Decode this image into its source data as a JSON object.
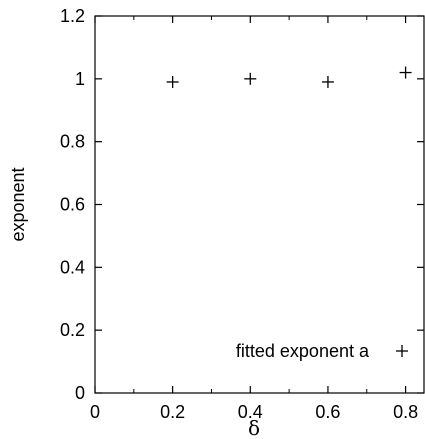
{
  "chart_data": {
    "type": "scatter",
    "title": "",
    "xlabel": "δ",
    "ylabel": "exponent",
    "xlim": [
      0,
      0.85
    ],
    "ylim": [
      0,
      1.2
    ],
    "xticks": [
      0,
      0.2,
      0.4,
      0.6,
      0.8
    ],
    "xtick_labels": [
      "0",
      "0.2",
      "0.4",
      "0.6",
      "0.8"
    ],
    "yticks": [
      0,
      0.2,
      0.4,
      0.6,
      0.8,
      1,
      1.2
    ],
    "ytick_labels": [
      "0",
      "0.2",
      "0.4",
      "0.6",
      "0.8",
      "1",
      "1.2"
    ],
    "grid": false,
    "legend_position": "bottom-right",
    "series": [
      {
        "name": "fitted exponent a",
        "marker": "plus",
        "color": "#000000",
        "x": [
          0.2,
          0.4,
          0.6,
          0.8
        ],
        "y": [
          0.99,
          1.0,
          0.99,
          1.02
        ]
      }
    ]
  }
}
